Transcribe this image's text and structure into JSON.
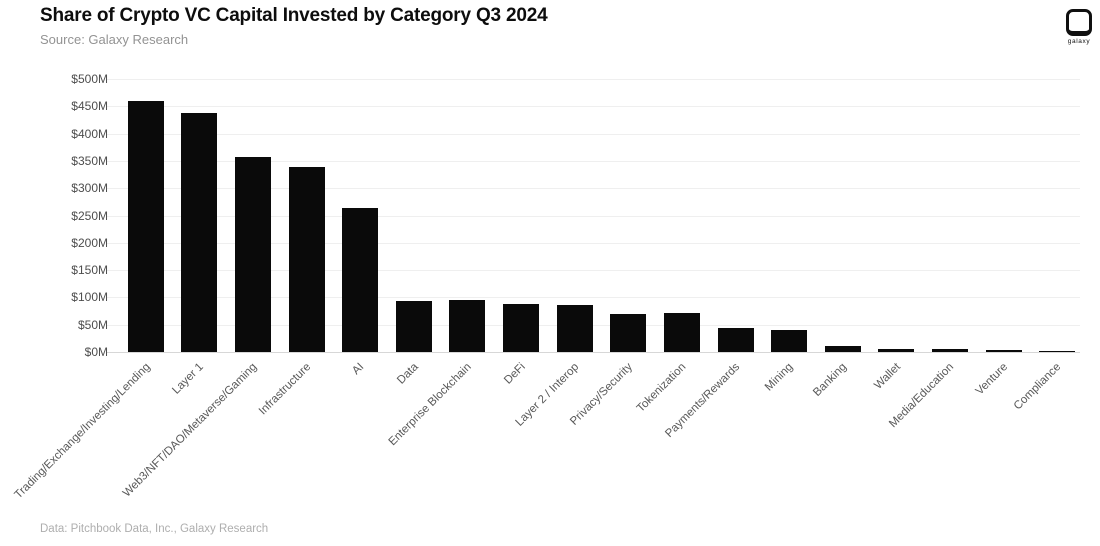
{
  "header": {
    "title": "Share of Crypto VC Capital Invested by Category Q3 2024",
    "subtitle": "Source: Galaxy Research",
    "logo_text": "galaxy"
  },
  "footer": {
    "note": "Data: Pitchbook Data, Inc., Galaxy Research"
  },
  "chart_data": {
    "type": "bar",
    "title": "Share of Crypto VC Capital Invested by Category Q3 2024",
    "categories": [
      "Trading/Exchange/Investing/Lending",
      "Layer 1",
      "Web3/NFT/DAO/Metaverse/Gaming",
      "Infrastructure",
      "AI",
      "Data",
      "Enterprise Blockchain",
      "DeFi",
      "Layer 2 / Interop",
      "Privacy/Security",
      "Tokenization",
      "Payments/Rewards",
      "Mining",
      "Banking",
      "Wallet",
      "Media/Education",
      "Venture",
      "Compliance"
    ],
    "values": [
      460,
      438,
      358,
      338,
      264,
      93,
      96,
      88,
      87,
      70,
      72,
      44,
      41,
      11,
      6,
      6,
      4,
      2
    ],
    "unit": "USD millions",
    "xlabel": "",
    "ylabel": "",
    "ylim": [
      0,
      500
    ],
    "ytick_step": 50,
    "ytick_labels": [
      "$0M",
      "$50M",
      "$100M",
      "$150M",
      "$200M",
      "$250M",
      "$300M",
      "$350M",
      "$400M",
      "$450M",
      "$500M"
    ],
    "grid": true,
    "legend": "none",
    "bar_color": "#0a0a0a",
    "gridline_color": "#efefef",
    "baseline_color": "#d7d7d7",
    "axis_text_color": "#4d4d4d",
    "category_text_color": "#585858"
  }
}
